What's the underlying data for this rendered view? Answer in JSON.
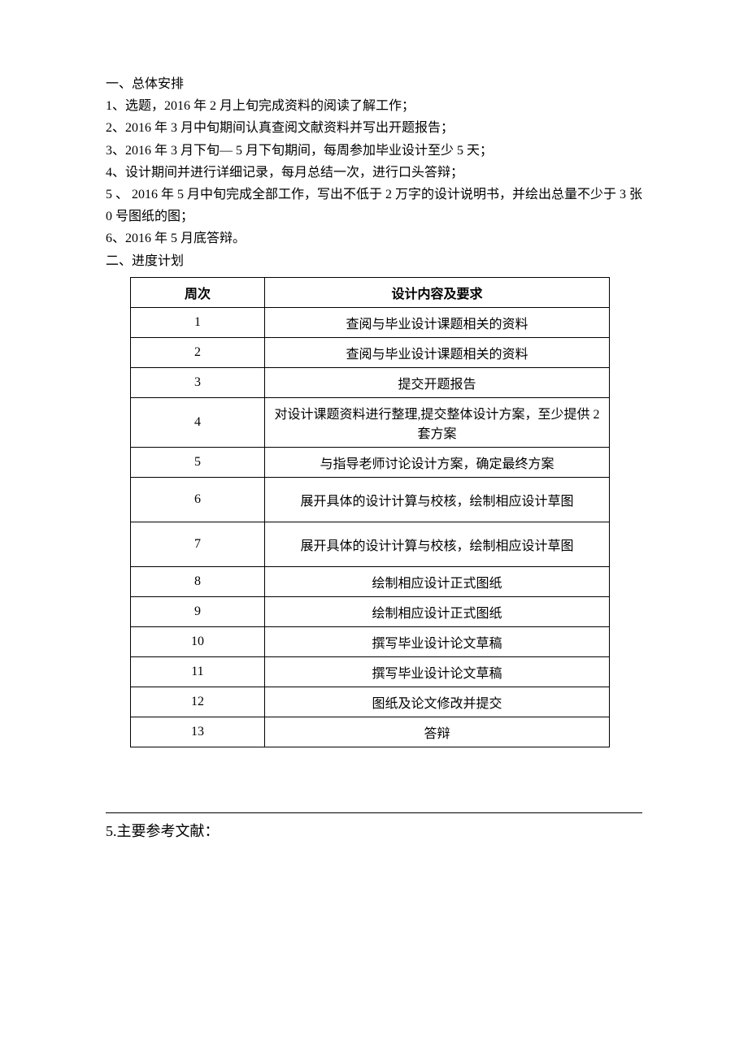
{
  "colors": {
    "background": "#ffffff",
    "text": "#000000",
    "border": "#000000"
  },
  "typography": {
    "body_fontsize": 16,
    "section_fontsize": 18,
    "font_family": "SimSun"
  },
  "section1": {
    "heading": "一、总体安排",
    "items": [
      "1、选题，2016 年 2 月上旬完成资料的阅读了解工作；",
      "2、2016 年 3 月中旬期间认真查阅文献资料并写出开题报告；",
      "3、2016 年 3 月下旬— 5 月下旬期间，每周参加毕业设计至少 5 天；",
      "4、设计期间并进行详细记录，每月总结一次，进行口头答辩；",
      "5 、 2016 年 5 月中旬完成全部工作，写出不低于 2 万字的设计说明书，并绘出总量不少于 3 张 0 号图纸的图；",
      "6、2016 年 5 月底答辩。"
    ]
  },
  "section2": {
    "heading": "二、进度计划",
    "table": {
      "type": "table",
      "columns": [
        {
          "header": "周次",
          "width": 0.28,
          "align": "center"
        },
        {
          "header": "设计内容及要求",
          "width": 0.72,
          "align": "center"
        }
      ],
      "rows": [
        {
          "week": "1",
          "content": "查阅与毕业设计课题相关的资料",
          "tall": false
        },
        {
          "week": "2",
          "content": "查阅与毕业设计课题相关的资料",
          "tall": false
        },
        {
          "week": "3",
          "content": "提交开题报告",
          "tall": false
        },
        {
          "week": "4",
          "content": "对设计课题资料进行整理,提交整体设计方案，至少提供 2 套方案",
          "tall": true
        },
        {
          "week": "5",
          "content": "与指导老师讨论设计方案，确定最终方案",
          "tall": false
        },
        {
          "week": "6",
          "content": "展开具体的设计计算与校核，绘制相应设计草图",
          "tall": true
        },
        {
          "week": "7",
          "content": "展开具体的设计计算与校核，绘制相应设计草图",
          "tall": true
        },
        {
          "week": "8",
          "content": "绘制相应设计正式图纸",
          "tall": false
        },
        {
          "week": "9",
          "content": "绘制相应设计正式图纸",
          "tall": false
        },
        {
          "week": "10",
          "content": "撰写毕业设计论文草稿",
          "tall": false
        },
        {
          "week": "11",
          "content": "撰写毕业设计论文草稿",
          "tall": false
        },
        {
          "week": "12",
          "content": "图纸及论文修改并提交",
          "tall": false
        },
        {
          "week": "13",
          "content": "答辩",
          "tall": false
        }
      ],
      "border_color": "#000000",
      "background_color": "#ffffff"
    }
  },
  "section5": {
    "heading": "5.主要参考文献："
  }
}
